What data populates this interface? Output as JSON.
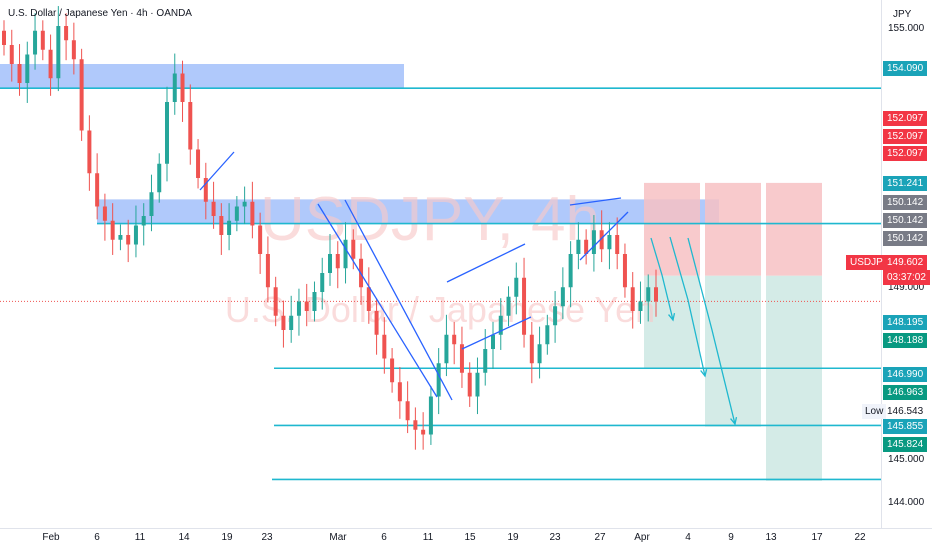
{
  "header": {
    "symbol_title": "U.S. Dollar / Japanese Yen · 4h · OANDA",
    "currency": "JPY"
  },
  "watermark": {
    "symbol": "USDJPY, 4h",
    "name": "U.S. Dollar / Japanese Yen"
  },
  "colors": {
    "up": "#26a69a",
    "down": "#ef5350",
    "zone": "#6f9cf7",
    "level_line": "#1fb8cf",
    "trend_line": "#2962ff",
    "stop_box": "#f7c1c3",
    "target_box": "#cfe9e4"
  },
  "chart_data": {
    "type": "candlestick",
    "title": "U.S. Dollar / Japanese Yen · 4h · OANDA",
    "y_unit": "JPY",
    "ylim": [
      143.55,
      155.55
    ],
    "x_tick_labels": [
      "Feb",
      "6",
      "11",
      "14",
      "19",
      "23",
      "Mar",
      "6",
      "11",
      "15",
      "19",
      "23",
      "27",
      "Apr",
      "4",
      "9",
      "13",
      "17",
      "22"
    ],
    "y_tick_labels": [
      "155.000",
      "149.000",
      "145.000",
      "144.000"
    ],
    "last_price": "149.602",
    "countdown": "03:37:02",
    "symbol_tag": "USDJPY",
    "low_label": "Low",
    "low_value": "146.543",
    "price_labels": [
      {
        "value": "154.090",
        "kind": "level"
      },
      {
        "value": "152.097",
        "kind": "stop"
      },
      {
        "value": "152.097",
        "kind": "stop"
      },
      {
        "value": "152.097",
        "kind": "stop"
      },
      {
        "value": "151.241",
        "kind": "level"
      },
      {
        "value": "150.142",
        "kind": "entry"
      },
      {
        "value": "150.142",
        "kind": "entry"
      },
      {
        "value": "150.142",
        "kind": "entry"
      },
      {
        "value": "148.195",
        "kind": "level"
      },
      {
        "value": "148.188",
        "kind": "target"
      },
      {
        "value": "146.990",
        "kind": "level"
      },
      {
        "value": "146.963",
        "kind": "target"
      },
      {
        "value": "145.855",
        "kind": "level"
      },
      {
        "value": "145.824",
        "kind": "target"
      }
    ],
    "horizontal_levels": [
      154.09,
      151.241,
      148.195,
      146.99,
      145.855
    ],
    "supply_zones": [
      [
        154.09,
        154.6
      ],
      [
        151.241,
        151.75
      ]
    ],
    "trade_setups": [
      {
        "entry": 150.142,
        "stop": 152.097,
        "target": 148.188
      },
      {
        "entry": 150.142,
        "stop": 152.097,
        "target": 146.963
      },
      {
        "entry": 150.142,
        "stop": 152.097,
        "target": 145.824
      }
    ],
    "close_series": [
      155.0,
      154.6,
      154.2,
      154.8,
      155.3,
      154.9,
      154.3,
      155.4,
      155.1,
      154.7,
      153.2,
      152.3,
      151.6,
      151.3,
      150.9,
      151.0,
      150.8,
      151.2,
      151.4,
      151.9,
      152.5,
      153.8,
      154.4,
      153.8,
      152.8,
      152.2,
      151.7,
      151.4,
      151.0,
      151.3,
      151.6,
      151.7,
      151.2,
      150.6,
      149.9,
      149.3,
      149.0,
      149.3,
      149.6,
      149.4,
      149.8,
      150.2,
      150.6,
      150.3,
      150.9,
      150.5,
      149.9,
      149.4,
      148.9,
      148.4,
      147.9,
      147.5,
      147.1,
      146.9,
      146.8,
      147.6,
      148.3,
      148.9,
      148.7,
      148.1,
      147.6,
      148.1,
      148.6,
      148.9,
      149.3,
      149.7,
      150.1,
      148.9,
      148.3,
      148.7,
      149.1,
      149.5,
      149.9,
      150.6,
      150.9,
      150.6,
      151.1,
      150.7,
      151.0,
      150.6,
      149.9,
      149.4,
      149.6,
      149.9,
      149.6
    ]
  }
}
